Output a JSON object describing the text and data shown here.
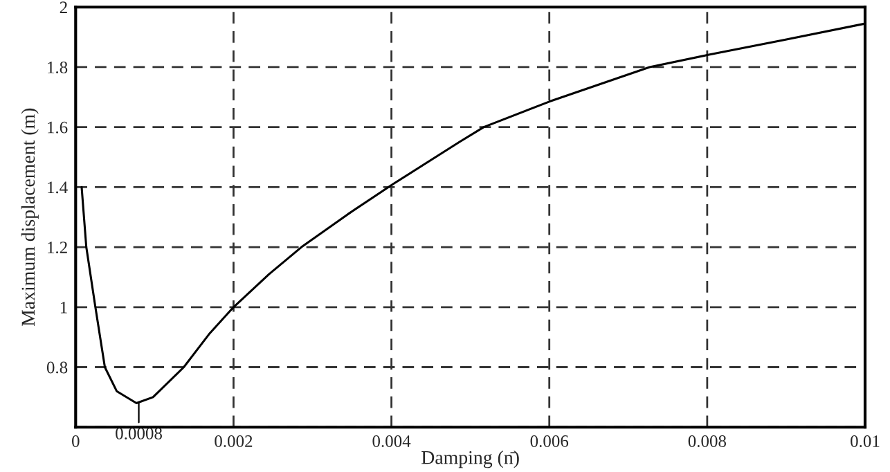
{
  "chart_data": {
    "type": "line",
    "xlabel": "Damping (n̄)",
    "ylabel": "Maximum displacement (m)",
    "x": [
      7.6e-05,
      0.000135,
      0.00025,
      0.00037,
      0.00052,
      0.00077,
      0.00098,
      0.00137,
      0.00169,
      0.002,
      0.00245,
      0.00286,
      0.00345,
      0.00402,
      0.00486,
      0.00517,
      0.006,
      0.00727,
      0.008,
      0.00896,
      0.01
    ],
    "series": [
      {
        "color": "#000000",
        "values": [
          1.4,
          1.2,
          1.0,
          0.8,
          0.72,
          0.68,
          0.7,
          0.8,
          0.91,
          1.0,
          1.11,
          1.2,
          1.31,
          1.41,
          1.55,
          1.6,
          1.685,
          1.8,
          1.84,
          1.89,
          1.945
        ]
      }
    ],
    "xlim": [
      0,
      0.01
    ],
    "ylim": [
      0.6,
      2
    ],
    "xticks": [
      0,
      0.002,
      0.004,
      0.006,
      0.008,
      0.01
    ],
    "yticks": [
      {
        "value": 0.6,
        "label": null
      },
      0.8,
      1,
      1.2,
      1.4,
      1.6,
      1.8,
      2
    ],
    "annotations": [
      {
        "text": "0.0008",
        "x": 0.0008,
        "y": 0.68
      }
    ],
    "grid": true,
    "marker": "none",
    "line_style": "solid",
    "legend": false
  }
}
